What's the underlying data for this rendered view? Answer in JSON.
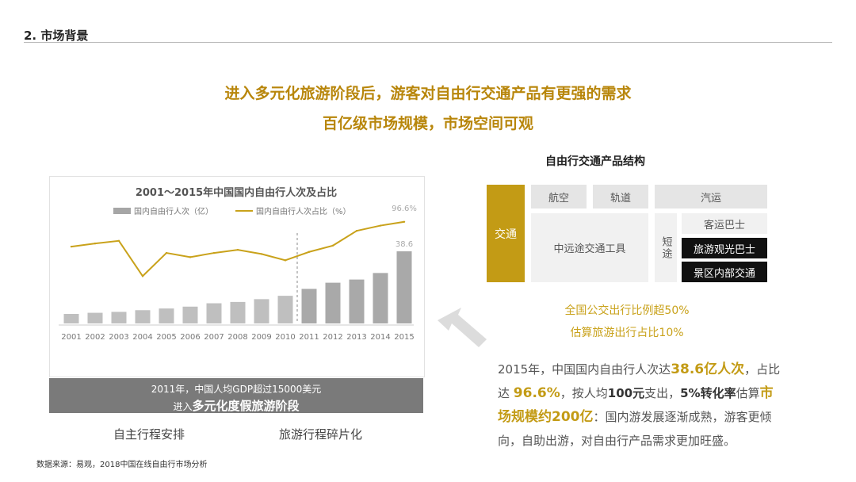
{
  "section_title": "2. 市场背景",
  "headline": {
    "line1": "进入多元化旅游阶段后，游客对自由行交通产品有更强的需求",
    "line2": "百亿级市场规模，市场空间可观"
  },
  "chart_data": {
    "type": "bar",
    "title": "2001～2015年中国国内自由行人次及占比",
    "categories": [
      "2001",
      "2002",
      "2003",
      "2004",
      "2005",
      "2006",
      "2007",
      "2008",
      "2009",
      "2010",
      "2011",
      "2012",
      "2013",
      "2014",
      "2015"
    ],
    "series": [
      {
        "name": "国内自由行人次（亿）",
        "type": "bar",
        "values": [
          5.1,
          5.7,
          6.2,
          7.1,
          8.0,
          9.0,
          10.8,
          11.5,
          13.0,
          14.8,
          18.5,
          21.8,
          23.5,
          27.0,
          38.6
        ]
      },
      {
        "name": "国内自由行人次占比（%）",
        "type": "line",
        "values": [
          73.0,
          76.0,
          78.5,
          45.0,
          67.0,
          63.0,
          67.0,
          70.0,
          66.0,
          60.0,
          68.0,
          74.0,
          88.0,
          93.0,
          96.6
        ]
      }
    ],
    "labels": {
      "bar_last": "38.6",
      "line_last": "96.6%"
    },
    "ylim_bar": [
      0,
      42
    ],
    "ylim_line": [
      0,
      110
    ],
    "divider_after": "2010",
    "grid": false,
    "legend": "top"
  },
  "banner": {
    "line1": "2011年，中国人均GDP超过15000美元",
    "line2_prefix": "进入",
    "line2_bold": "多元化度假旅游阶段"
  },
  "notes_left": [
    "自主行程安排",
    "旅游行程碎片化"
  ],
  "structure": {
    "title": "自由行交通产品结构",
    "transport": "交通",
    "air": "航空",
    "rail": "轨道",
    "bus": "汽运",
    "mid_long": "中远途交通工具",
    "short": "短途",
    "coach": "客运巴士",
    "tour_bus": "旅游观光巴士",
    "scenic": "景区内部交通"
  },
  "gold_notes": [
    "全国公交出行比例超50%",
    "估算旅游出行占比10%"
  ],
  "paragraph": {
    "p1": "2015年，中国国内自由行人次达",
    "v1": "38.6亿人次",
    "p2": "，占比达 ",
    "v2": "96.6%",
    "p3": "，按人均",
    "v3": "100元",
    "p4": "支出，",
    "v4": "5%转化率",
    "p5": "估算",
    "v5": "市场规模约200亿",
    "p6": "：国内游发展逐渐成熟，游客更倾向，自助出游，对自由行产品需求更加旺盛。"
  },
  "source": "数据来源：易观，2018中国在线自由行市场分析"
}
